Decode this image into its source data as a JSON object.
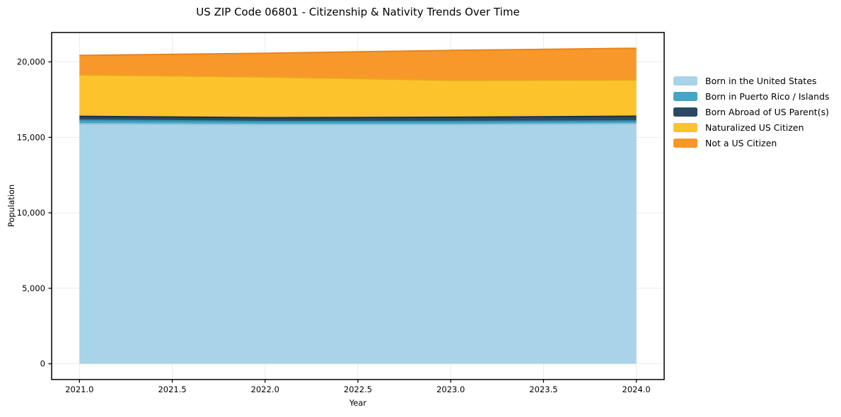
{
  "chart_data": {
    "type": "area",
    "stacked": true,
    "title": "US ZIP Code 06801 - Citizenship & Nativity Trends Over Time",
    "xlabel": "Year",
    "ylabel": "Population",
    "x": [
      2021,
      2022,
      2023,
      2024
    ],
    "series": [
      {
        "name": "Born in the United States",
        "values": [
          15900,
          15850,
          15850,
          15900
        ],
        "color": "#a8d3e8",
        "edge_color": "#8fc0d9"
      },
      {
        "name": "Born in Puerto Rico / Islands",
        "values": [
          240,
          200,
          200,
          180
        ],
        "color": "#45a5c4",
        "edge_color": "#338fae"
      },
      {
        "name": "Born Abroad of US Parent(s)",
        "values": [
          250,
          250,
          280,
          320
        ],
        "color": "#2a4a63",
        "edge_color": "#17304a"
      },
      {
        "name": "Naturalized US Citizen",
        "values": [
          2750,
          2700,
          2450,
          2400
        ],
        "color": "#fdc32c",
        "edge_color": "#e9a81e"
      },
      {
        "name": "Not a US Citizen",
        "values": [
          1290,
          1570,
          1980,
          2100
        ],
        "color": "#f8982b",
        "edge_color": "#e8831c"
      }
    ],
    "xlim": [
      2020.85,
      2024.15
    ],
    "ylim": [
      -1045,
      21945
    ],
    "x_ticks": {
      "values": [
        2021.0,
        2021.5,
        2022.0,
        2022.5,
        2023.0,
        2023.5,
        2024.0
      ],
      "labels": [
        "2021.0",
        "2021.5",
        "2022.0",
        "2022.5",
        "2023.0",
        "2023.5",
        "2024.0"
      ]
    },
    "y_ticks": {
      "values": [
        0,
        5000,
        10000,
        15000,
        20000
      ],
      "labels": [
        "0",
        "5,000",
        "10,000",
        "15,000",
        "20,000"
      ]
    },
    "grid": true,
    "grid_color": "#ebebeb",
    "spine_color": "#000000",
    "legend_position": "right-outside"
  }
}
